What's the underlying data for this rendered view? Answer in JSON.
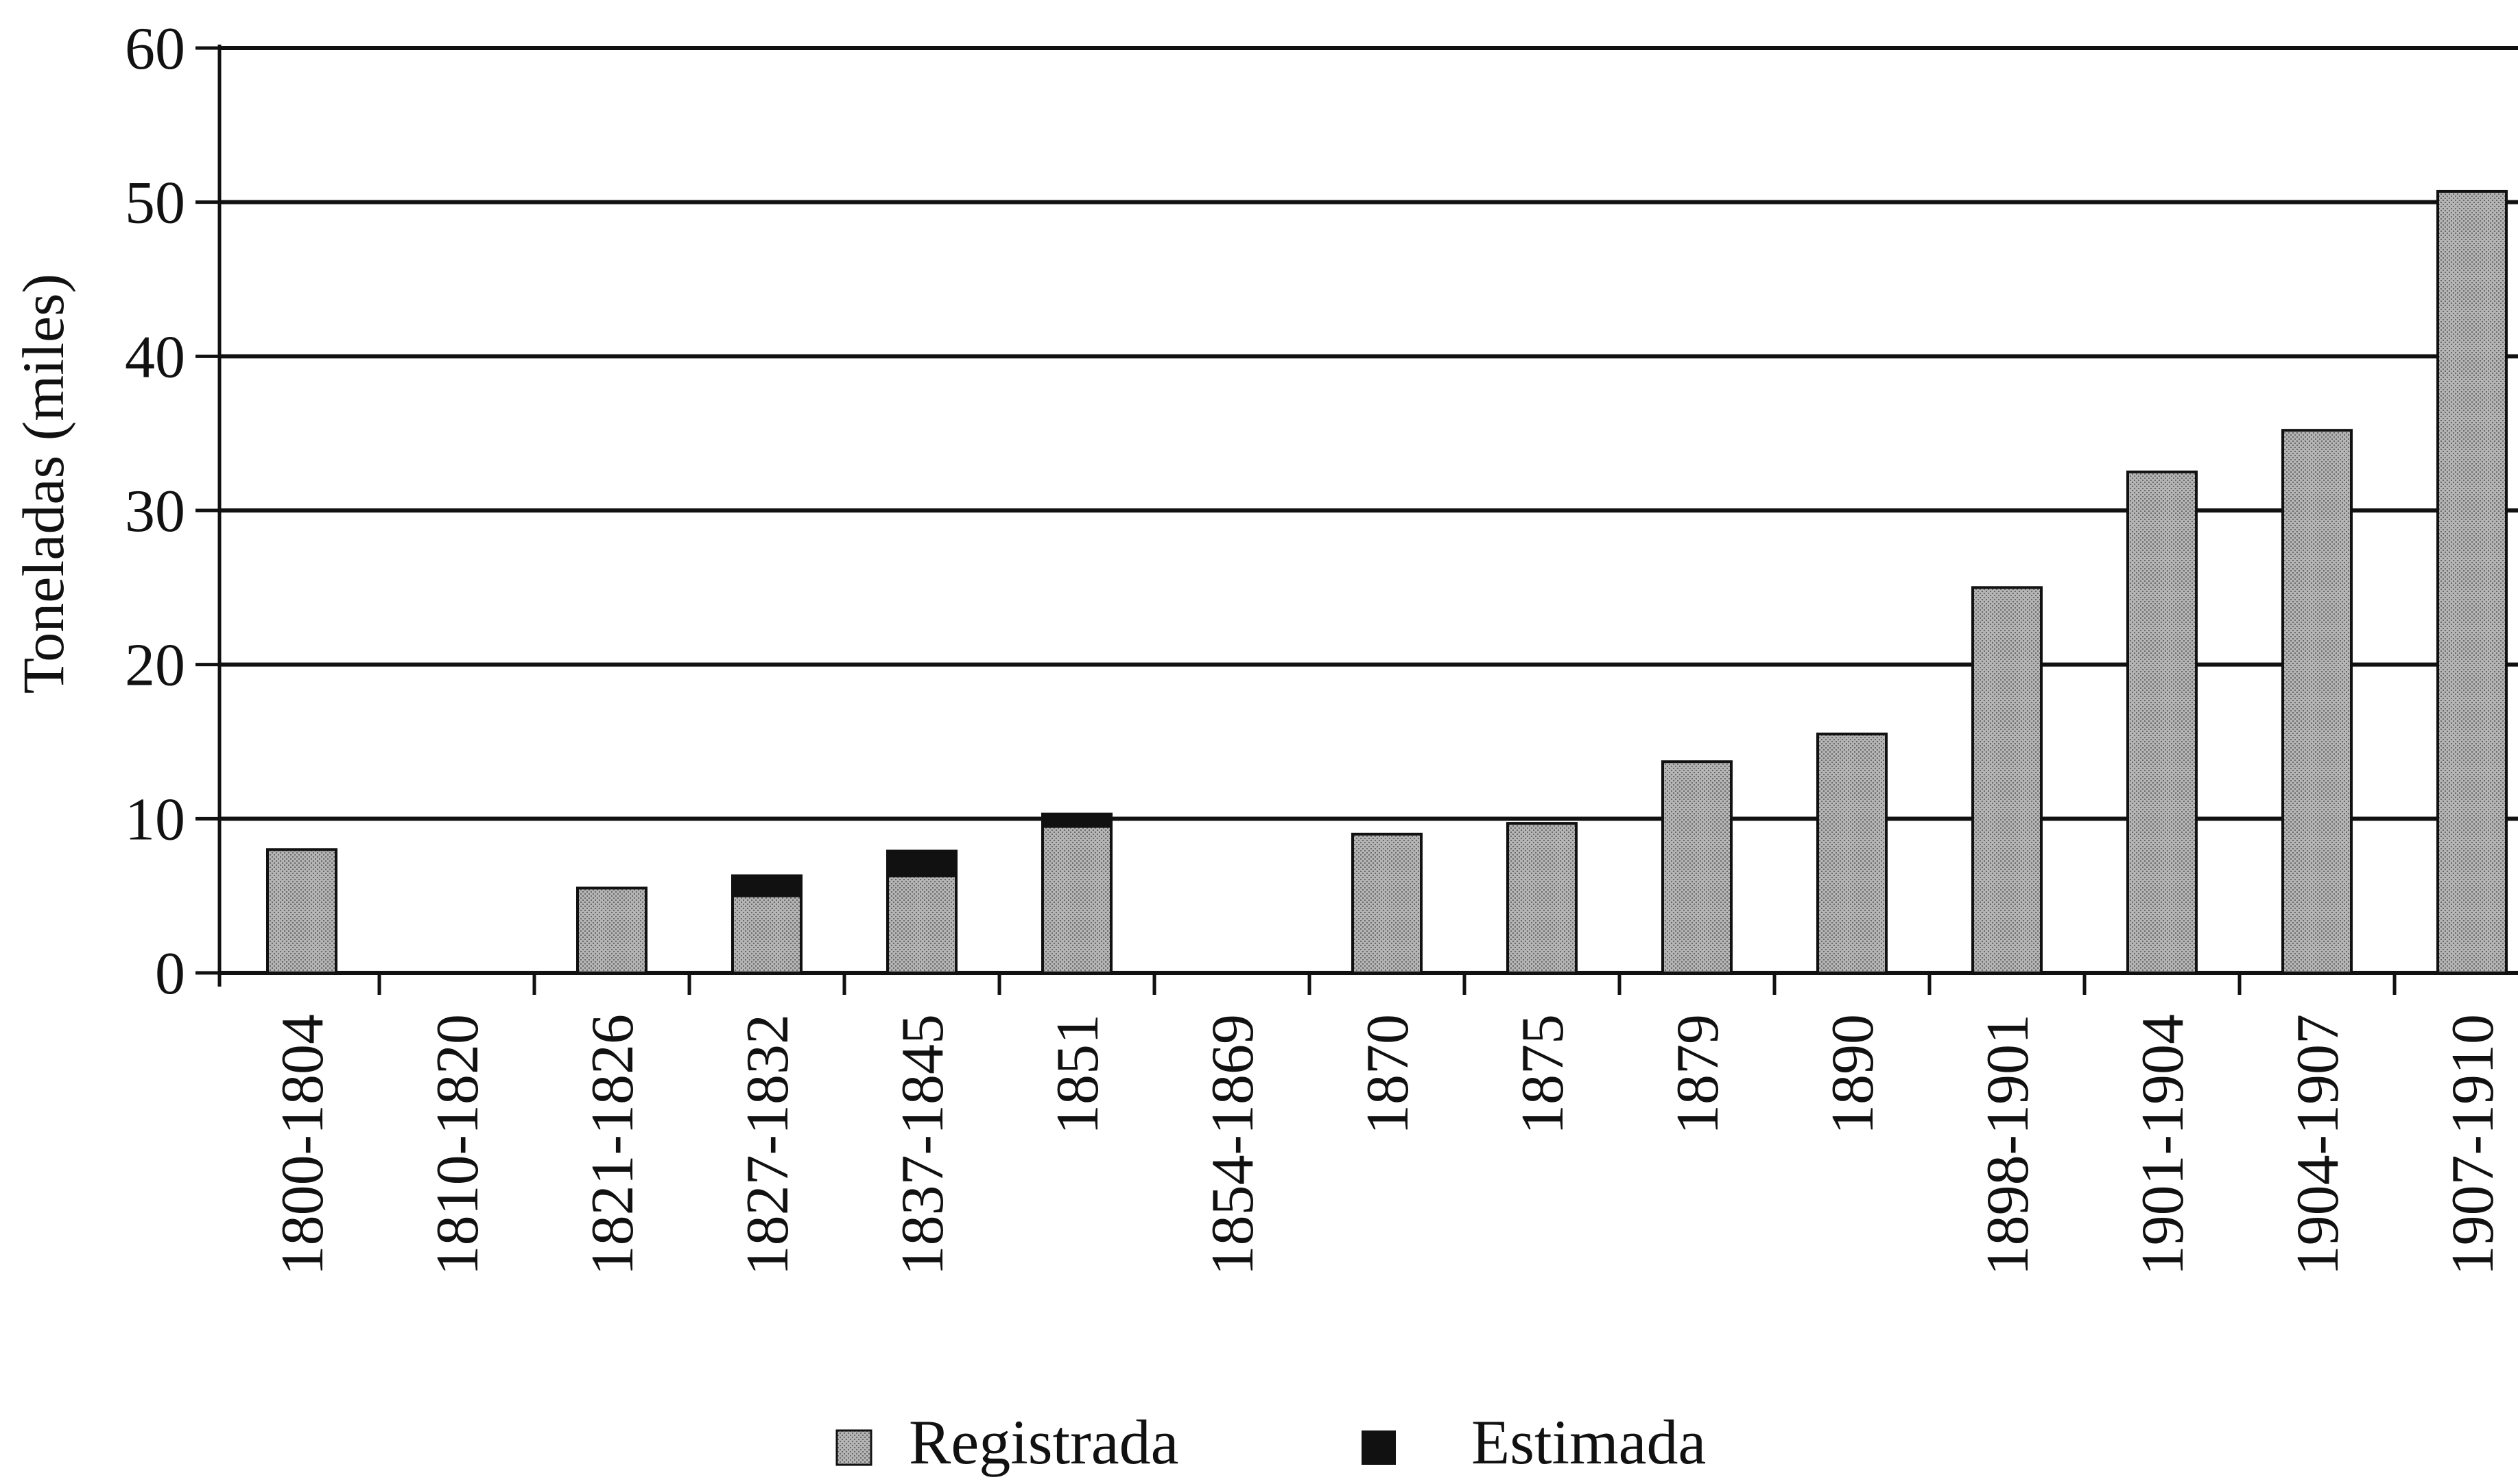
{
  "chart_data": {
    "type": "bar",
    "stacked": true,
    "title": "",
    "xlabel": "",
    "ylabel": "Toneladas (miles)",
    "ylim": [
      0,
      60
    ],
    "yticks": [
      "0",
      "10",
      "20",
      "30",
      "40",
      "50",
      "60"
    ],
    "grid": true,
    "legend_position": "bottom-center",
    "categories": [
      "1800-1804",
      "1810-1820",
      "1821-1826",
      "1827-1832",
      "1837-1845",
      "1851",
      "1854-1869",
      "1870",
      "1875",
      "1879",
      "1890",
      "1898-1901",
      "1901-1904",
      "1904-1907",
      "1907-1910"
    ],
    "series": [
      {
        "name": "Registrada",
        "color": "#a8a8a8",
        "values": [
          8.0,
          0,
          5.5,
          5.0,
          6.3,
          9.5,
          0,
          9.0,
          9.7,
          13.7,
          15.5,
          25.0,
          32.5,
          35.2,
          50.7
        ]
      },
      {
        "name": "Estimada",
        "color": "#111111",
        "values": [
          0,
          0,
          0,
          1.3,
          1.6,
          0.8,
          0,
          0,
          0,
          0,
          0,
          0,
          0,
          0,
          0
        ]
      }
    ]
  }
}
